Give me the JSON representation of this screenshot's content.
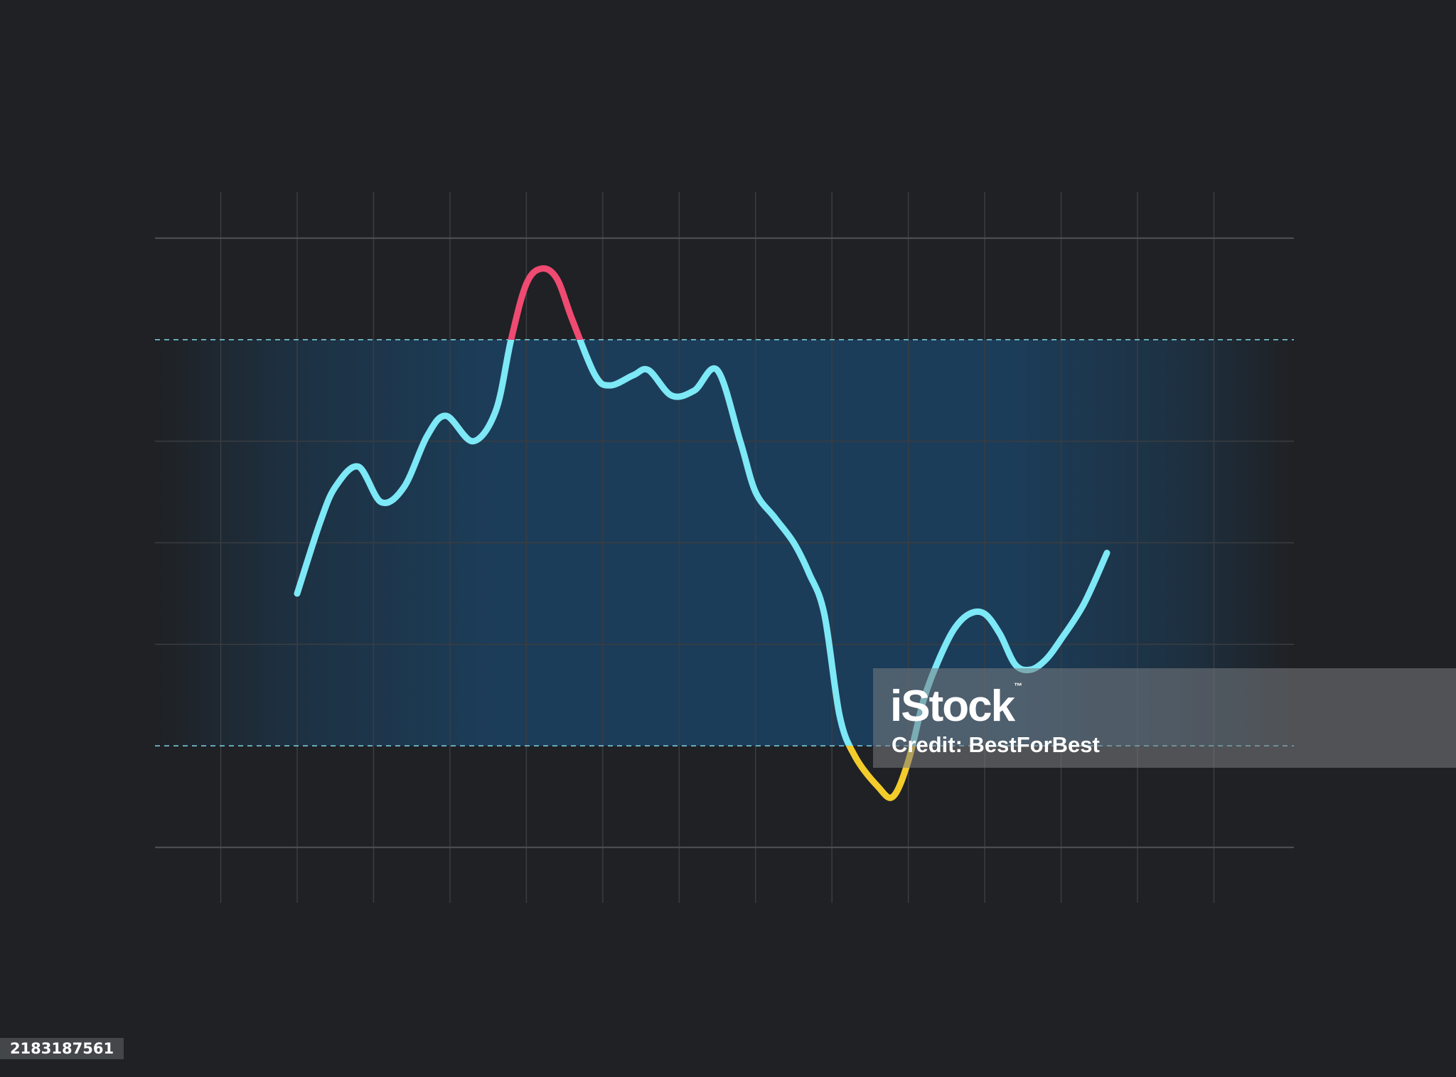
{
  "chart_data": {
    "type": "line",
    "title": "",
    "xlabel": "",
    "ylabel": "",
    "grid": true,
    "xlim": [
      0,
      11
    ],
    "ylim": [
      0,
      6
    ],
    "band": {
      "lower": 1,
      "upper": 5,
      "color": "#1c3d59"
    },
    "colors": {
      "in_band": "#7de8f6",
      "above_band": "#ef4a72",
      "below_band": "#f3cc2c",
      "band_edge": "#78c6d8"
    },
    "series": [
      {
        "x": [
          0,
          0.3,
          0.5,
          0.8,
          1.1,
          1.4,
          1.7,
          1.95,
          2.3,
          2.6,
          2.8,
          3.0,
          3.2,
          3.4,
          3.6,
          3.9,
          4.1,
          4.4,
          4.6,
          4.9,
          5.2,
          5.5,
          5.8,
          6.0,
          6.25,
          6.5,
          6.7,
          6.9,
          7.1,
          7.3,
          7.6,
          7.8,
          8.0,
          8.2,
          8.4,
          8.6,
          8.8,
          9.0,
          9.2,
          9.4,
          9.6,
          9.8,
          10.0,
          10.3,
          10.6
        ],
        "y": [
          2.5,
          3.2,
          3.55,
          3.75,
          3.4,
          3.55,
          4.05,
          4.25,
          4.0,
          4.3,
          5.0,
          5.55,
          5.7,
          5.6,
          5.2,
          4.65,
          4.55,
          4.65,
          4.7,
          4.45,
          4.5,
          4.7,
          4.0,
          3.5,
          3.25,
          3.0,
          2.7,
          2.3,
          1.3,
          0.9,
          0.6,
          0.5,
          0.85,
          1.45,
          1.85,
          2.15,
          2.3,
          2.3,
          2.1,
          1.8,
          1.75,
          1.85,
          2.05,
          2.4,
          2.9
        ]
      }
    ]
  },
  "watermark": {
    "brand": "iStock",
    "tm": "™",
    "credit": "Credit: BestForBest"
  },
  "image_id": "2183187561"
}
